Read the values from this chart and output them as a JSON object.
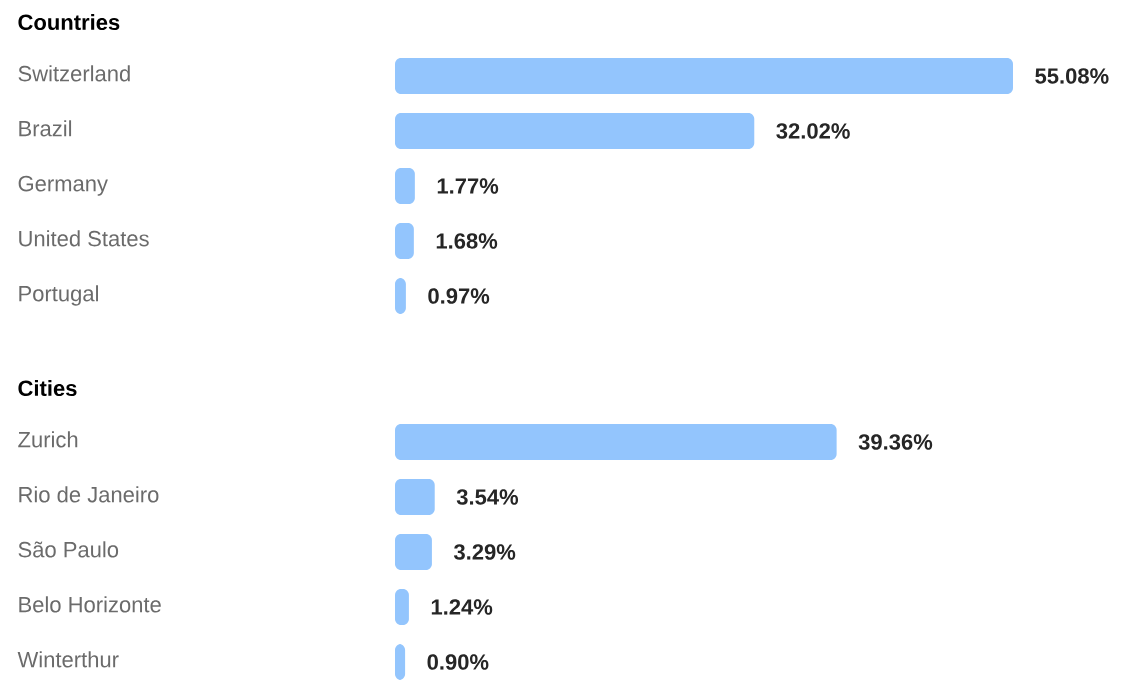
{
  "chart_data": [
    {
      "type": "bar",
      "orientation": "horizontal",
      "title": "Countries",
      "categories": [
        "Switzerland",
        "Brazil",
        "Germany",
        "United States",
        "Portugal"
      ],
      "values": [
        55.08,
        32.02,
        1.77,
        1.68,
        0.97
      ],
      "value_labels": [
        "55.08%",
        "32.02%",
        "1.77%",
        "1.68%",
        "0.97%"
      ],
      "color": "#93c5fd",
      "tick_labels": "y"
    },
    {
      "type": "bar",
      "orientation": "horizontal",
      "title": "Cities",
      "categories": [
        "Zurich",
        "Rio de Janeiro",
        "São Paulo",
        "Belo Horizonte",
        "Winterthur"
      ],
      "values": [
        39.36,
        3.54,
        3.29,
        1.24,
        0.9
      ],
      "value_labels": [
        "39.36%",
        "3.54%",
        "3.29%",
        "1.24%",
        "0.90%"
      ],
      "color": "#93c5fd",
      "tick_labels": "y"
    }
  ]
}
